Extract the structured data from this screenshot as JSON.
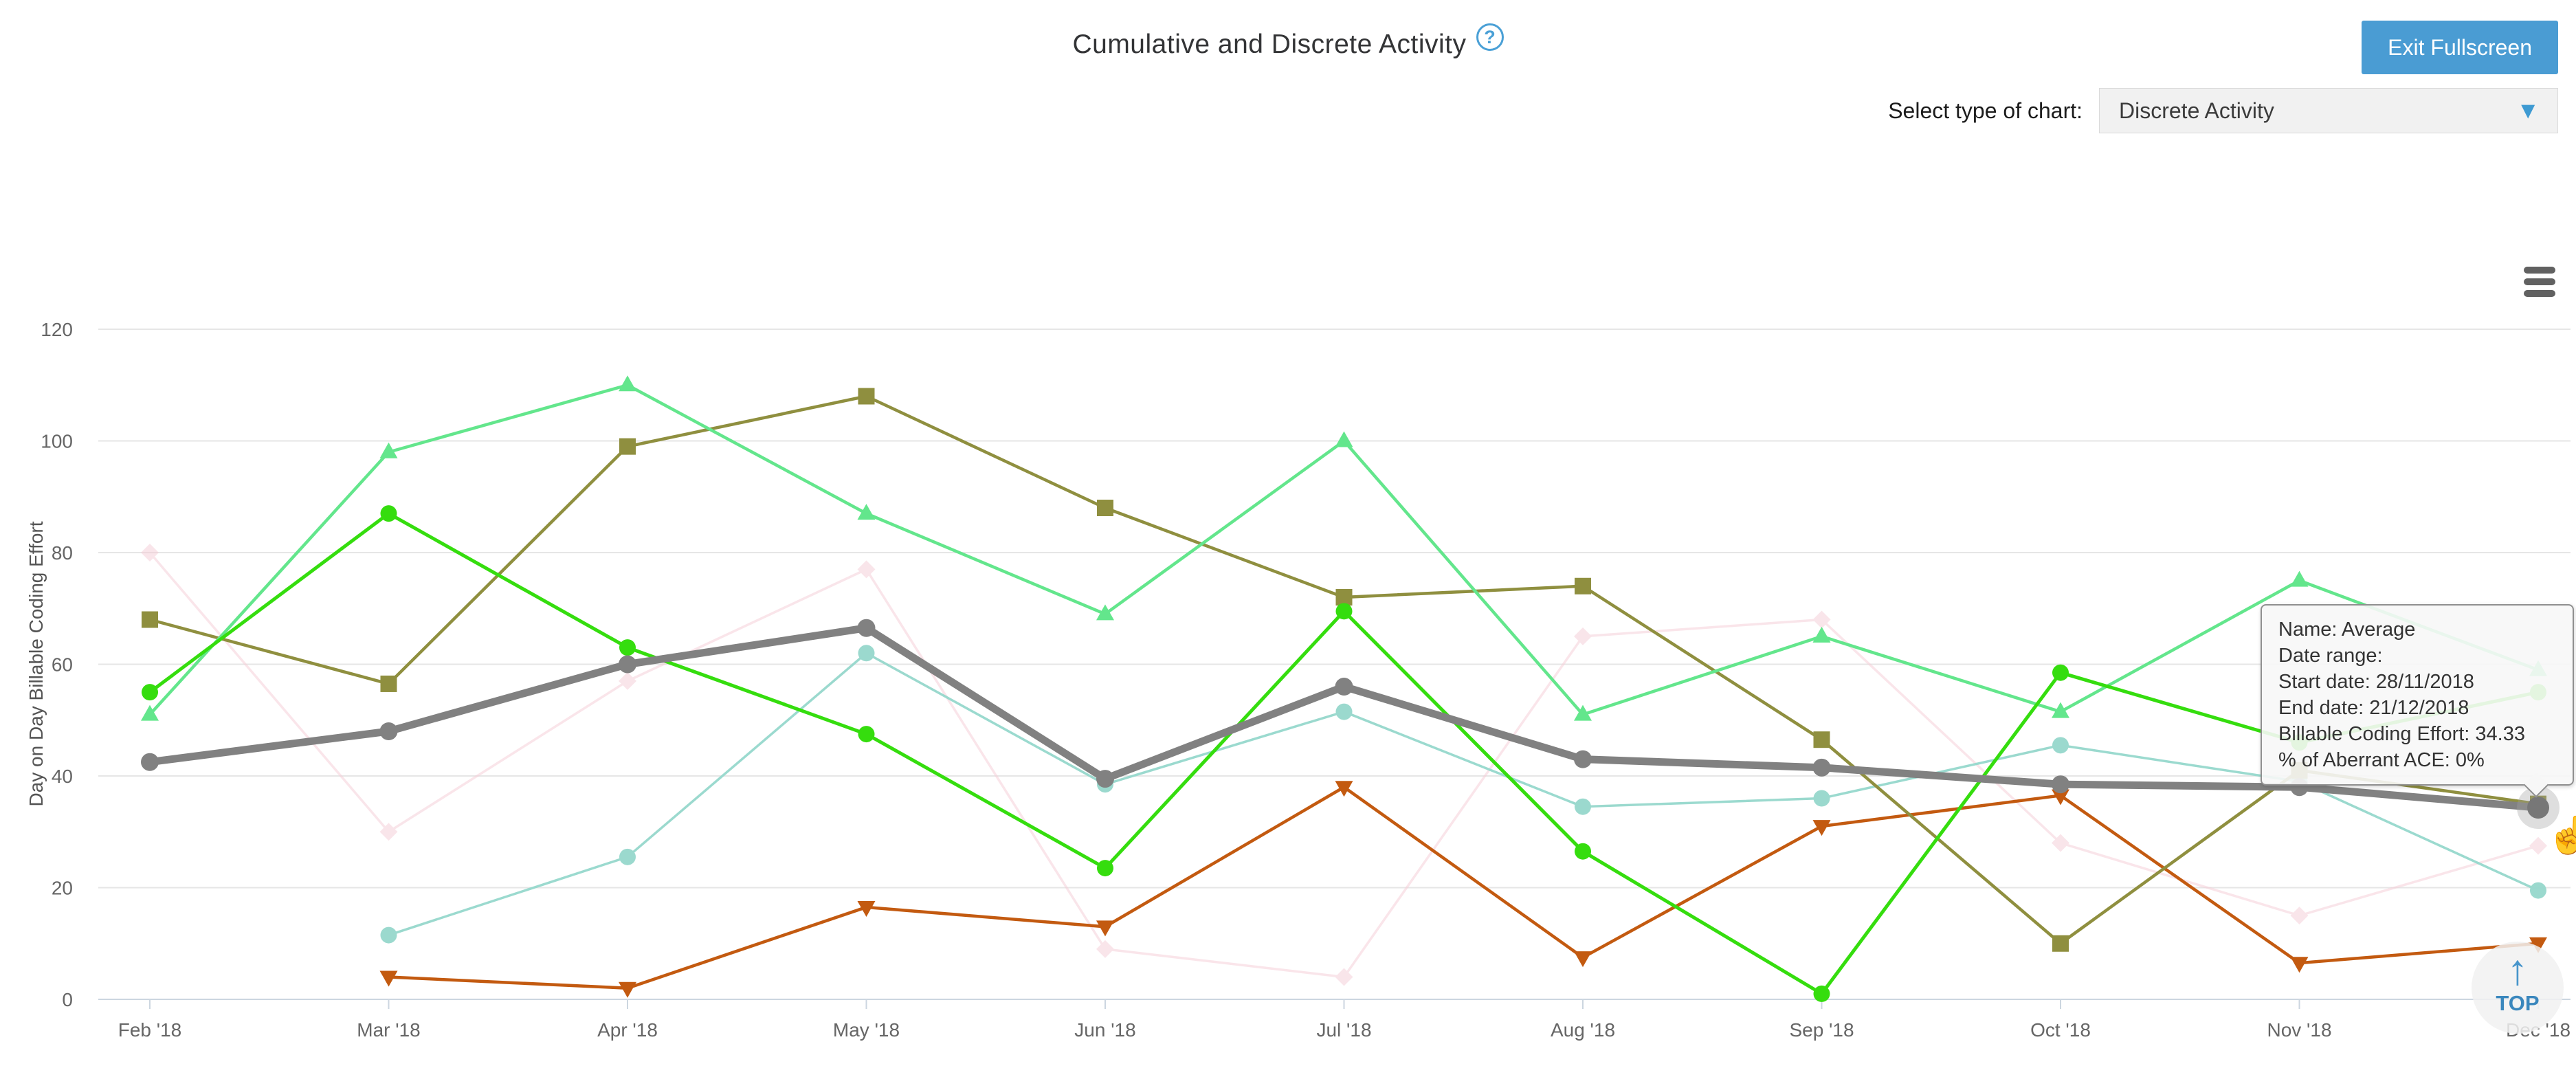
{
  "header": {
    "title": "Cumulative and Discrete Activity",
    "help": "?",
    "exit_fullscreen_label": "Exit Fullscreen",
    "select_label": "Select type of chart:",
    "select_value": "Discrete Activity",
    "select_arrow": "▼"
  },
  "tooltip": {
    "lines": [
      "Name: Average",
      "Date range:",
      "Start date: 28/11/2018",
      "End date: 21/12/2018",
      "Billable Coding Effort: 34.33",
      "% of Aberrant ACE: 0%"
    ]
  },
  "top_button": {
    "arrow": "↑",
    "label": "TOP"
  },
  "colors": {
    "accent_blue": "#4a9cd3",
    "grid": "#e6e6e6",
    "axis_line": "#ccd6e0",
    "axis_text": "#666666",
    "halo": "rgba(160,160,160,0.35)"
  },
  "chart_data": {
    "type": "line",
    "title": "Cumulative and Discrete Activity",
    "xlabel": "",
    "ylabel": "Day on Day Billable Coding Effort",
    "ylim": [
      0,
      126
    ],
    "yticks": [
      0,
      20,
      40,
      60,
      80,
      100,
      120
    ],
    "grid": true,
    "legend_position": "none",
    "categories": [
      "Feb '18",
      "Mar '18",
      "Apr '18",
      "May '18",
      "Jun '18",
      "Jul '18",
      "Aug '18",
      "Sep '18",
      "Oct '18",
      "Nov '18",
      "Dec '18"
    ],
    "series": [
      {
        "name": "pale-pink",
        "color": "#f5ccd6",
        "opacity": 0.5,
        "marker": "diamond",
        "width": 3.5,
        "values": [
          80,
          30,
          57,
          77,
          9,
          4,
          65,
          68,
          28,
          15,
          27.5
        ]
      },
      {
        "name": "teal",
        "color": "#96d8cc",
        "opacity": 0.95,
        "marker": "circle",
        "width": 3.5,
        "values": [
          null,
          11.5,
          25.5,
          62,
          38.5,
          51.5,
          34.5,
          36,
          45.5,
          39,
          19.5
        ]
      },
      {
        "name": "orange",
        "color": "#c35a10",
        "opacity": 1,
        "marker": "triangle-down",
        "width": 4.5,
        "values": [
          null,
          4,
          2,
          16.5,
          13,
          38,
          7.5,
          31,
          36.5,
          6.5,
          10
        ]
      },
      {
        "name": "olive",
        "color": "#8f8f3f",
        "opacity": 1,
        "marker": "square",
        "width": 4.5,
        "values": [
          68,
          56.5,
          99,
          108,
          88,
          72,
          74,
          46.5,
          10,
          41,
          35
        ]
      },
      {
        "name": "mint-green",
        "color": "#63e68c",
        "opacity": 1,
        "marker": "triangle-up",
        "width": 4.5,
        "values": [
          51,
          98,
          110,
          87,
          69,
          100,
          51,
          65,
          51.5,
          75,
          59
        ]
      },
      {
        "name": "bright-green",
        "color": "#35dd0e",
        "opacity": 1,
        "marker": "circle",
        "width": 5,
        "values": [
          55,
          87,
          63,
          47.5,
          23.5,
          69.5,
          26.5,
          1,
          58.5,
          46,
          55
        ]
      },
      {
        "name": "Average",
        "color": "#818181",
        "opacity": 1,
        "marker": "circle",
        "width": 11,
        "values": [
          42.5,
          48,
          60,
          66.5,
          39.5,
          56,
          43,
          41.5,
          38.5,
          38,
          34.33
        ]
      }
    ],
    "hover": {
      "series": "Average",
      "category_index": 10,
      "value": 34.33
    }
  }
}
